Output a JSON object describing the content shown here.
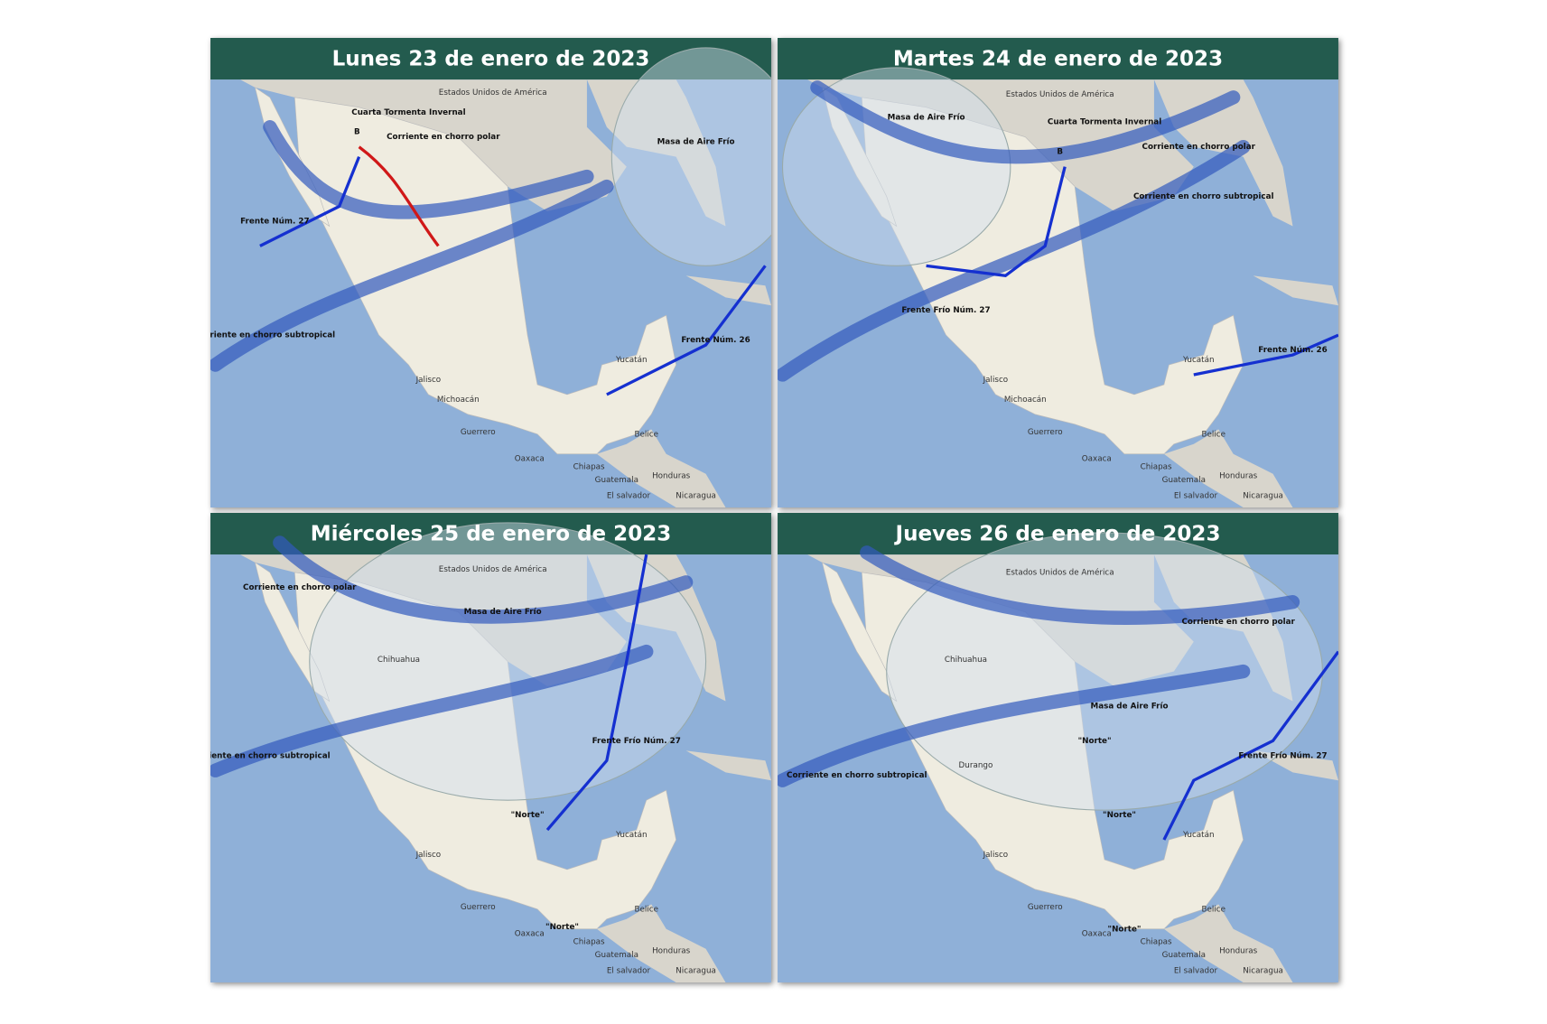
{
  "panels": [
    {
      "title": "Lunes 23 de enero de 2023",
      "labels": [
        "Estados Unidos de América",
        "Cuarta Tormenta Invernal",
        "B",
        "Masa de Aire Frío",
        "Frente Núm. 27",
        "Corriente en chorro polar",
        "Corriente en chorro subtropical",
        "Frente Núm. 26",
        "Jalisco",
        "Michoacán",
        "Guerrero",
        "Oaxaca",
        "Chiapas",
        "Guatemala",
        "Honduras",
        "El salvador",
        "Nicaragua",
        "Belice",
        "Yucatán"
      ]
    },
    {
      "title": "Martes 24 de enero de 2023",
      "labels": [
        "Estados Unidos de América",
        "Masa de Aire Frío",
        "Cuarta Tormenta Invernal",
        "B",
        "Corriente en chorro polar",
        "Corriente en chorro subtropical",
        "Frente Frío Núm. 27",
        "Frente Núm. 26",
        "Jalisco",
        "Michoacán",
        "Guerrero",
        "Oaxaca",
        "Chiapas",
        "Guatemala",
        "Honduras",
        "El salvador",
        "Nicaragua",
        "Belice",
        "Yucatán"
      ]
    },
    {
      "title": "Miércoles 25 de enero de 2023",
      "labels": [
        "Estados Unidos de América",
        "Corriente en chorro polar",
        "Masa de Aire Frío",
        "Chihuahua",
        "Corriente en chorro subtropical",
        "Frente Frío Núm. 27",
        "\"Norte\"",
        "\"Norte\"",
        "Jalisco",
        "Guerrero",
        "Oaxaca",
        "Chiapas",
        "Guatemala",
        "Honduras",
        "El salvador",
        "Nicaragua",
        "Belice",
        "Yucatán"
      ]
    },
    {
      "title": "Jueves 26 de enero de 2023",
      "labels": [
        "Estados Unidos de América",
        "Corriente en chorro polar",
        "Chihuahua",
        "Masa de Aire Frío",
        "\"Norte\"",
        "\"Norte\"",
        "\"Norte\"",
        "Corriente en chorro subtropical",
        "Frente Frío Núm. 27",
        "Durango",
        "Jalisco",
        "Guerrero",
        "Oaxaca",
        "Chiapas",
        "Guatemala",
        "Honduras",
        "El salvador",
        "Nicaragua",
        "Belice",
        "Yucatán"
      ]
    }
  ]
}
